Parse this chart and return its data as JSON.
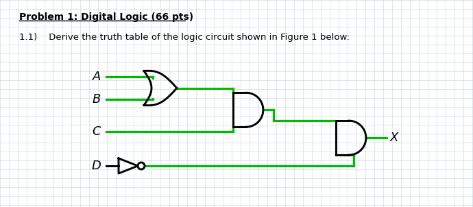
{
  "title": "Problem 1: Digital Logic (66 pts)",
  "subtitle": "1.1)    Derive the truth table of the logic circuit shown in Figure 1 below:",
  "bg_color": "#ffffff",
  "grid_color": "#c5d8ea",
  "wire_color": "#00bb00",
  "gate_color": "#000000",
  "label_A": "A",
  "label_B": "B",
  "label_C": "C",
  "label_D": "D",
  "label_X": "X",
  "wire_lw": 2.3,
  "gate_lw": 2.1,
  "figw": 6.9,
  "figh": 3.02,
  "dpi": 100
}
